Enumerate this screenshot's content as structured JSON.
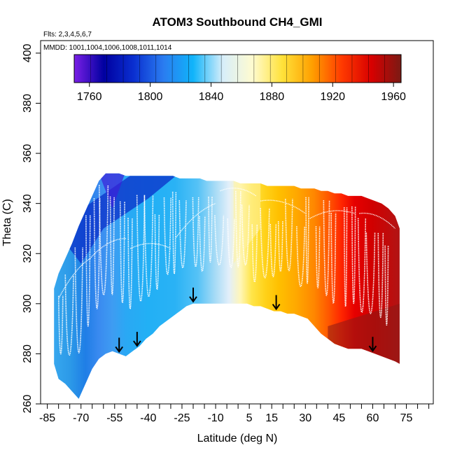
{
  "chart_data": {
    "type": "heatmap",
    "title": "ATOM3 Southbound CH4_GMI",
    "flights_label": "Flts: 2,3,4,5,6,7",
    "dates_label": "MMDD: 1001,1004,1006,1008,1011,1014",
    "xlabel": "Latitude (deg N)",
    "ylabel": "Theta (C)",
    "xlim": [
      -88,
      87
    ],
    "ylim": [
      260,
      405
    ],
    "x_ticks": [
      -85,
      -70,
      -55,
      -40,
      -25,
      -10,
      5,
      15,
      30,
      45,
      60,
      75
    ],
    "x_minor_ticks": [
      -80,
      -75,
      -65,
      -60,
      -50,
      -45,
      -35,
      -30,
      -20,
      -15,
      -5,
      0,
      10,
      20,
      25,
      35,
      40,
      50,
      55,
      65,
      70,
      80,
      85
    ],
    "y_ticks": [
      260,
      280,
      300,
      320,
      340,
      360,
      380,
      400
    ],
    "colorbar": {
      "min": 1750,
      "max": 1965,
      "ticks": [
        1760,
        1800,
        1840,
        1880,
        1920,
        1960
      ],
      "colors": [
        "#7a1fe6",
        "#0000a0",
        "#0a2fd0",
        "#2a7cf0",
        "#10b4fa",
        "#d7eefa",
        "#fffbd0",
        "#ffe23a",
        "#ffa000",
        "#ff3a00",
        "#d80000",
        "#7a1a14"
      ]
    },
    "arrows_lat": [
      -53,
      -45,
      -20,
      17,
      60
    ],
    "envelope": {
      "lat": [
        -82,
        -80,
        -77,
        -74,
        -71,
        -68,
        -65,
        -62,
        -59,
        -56,
        -53,
        -50,
        -47,
        -44,
        -41,
        -38,
        -35,
        -32,
        -29,
        -26,
        -23,
        -20,
        -17,
        -14,
        -11,
        -8,
        -5,
        -2,
        1,
        4,
        7,
        10,
        13,
        16,
        19,
        22,
        25,
        28,
        31,
        34,
        37,
        40,
        43,
        46,
        49,
        52,
        55,
        58,
        61,
        64,
        67,
        70,
        72
      ],
      "top": [
        306,
        312,
        318,
        324,
        331,
        337,
        343,
        349,
        352,
        352,
        352,
        351,
        351,
        351,
        351,
        351,
        351,
        351,
        351,
        350,
        350,
        350,
        350,
        349,
        349,
        349,
        349,
        349,
        348,
        348,
        348,
        348,
        347,
        347,
        347,
        347,
        347,
        346,
        346,
        346,
        345,
        345,
        344,
        344,
        343,
        343,
        343,
        342,
        341,
        340,
        338,
        335,
        330
      ],
      "bottom": [
        276,
        270,
        268,
        265,
        262,
        268,
        274,
        278,
        280,
        281,
        280,
        279,
        281,
        283,
        286,
        288,
        291,
        293,
        295,
        297,
        299,
        300,
        300,
        300,
        300,
        300,
        300,
        300,
        300,
        300,
        299,
        299,
        298,
        297,
        297,
        296,
        296,
        295,
        294,
        291,
        288,
        286,
        284,
        283,
        282,
        282,
        282,
        281,
        280,
        279,
        278,
        277,
        276
      ]
    }
  }
}
